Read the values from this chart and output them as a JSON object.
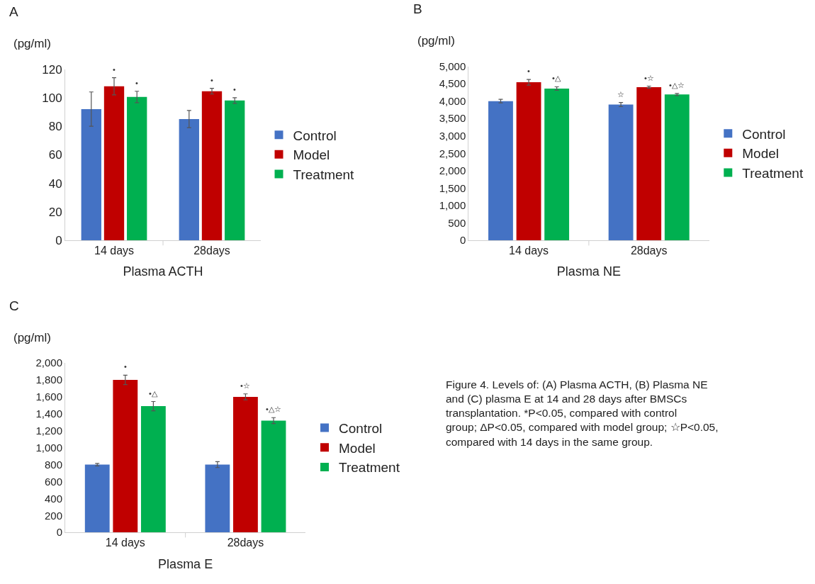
{
  "chart_data": [
    {
      "type": "bar",
      "title": "A",
      "xlabel": "Plasma ACTH",
      "ylabel": "(pg/ml)",
      "categories": [
        "14 days",
        "28days"
      ],
      "ylim": [
        0,
        120
      ],
      "yticks": [
        0,
        20,
        40,
        60,
        80,
        100,
        120
      ],
      "grid": false,
      "legend": "right",
      "series": [
        {
          "name": "Control",
          "color": "#4472c4",
          "values": [
            92,
            85
          ],
          "errors": [
            12,
            6
          ],
          "value_labels": [
            null,
            null
          ]
        },
        {
          "name": "Model",
          "color": "#c00000",
          "values": [
            108,
            104.5
          ],
          "errors": [
            6,
            2
          ],
          "value_labels": [
            "•",
            "•"
          ]
        },
        {
          "name": "Treatment",
          "color": "#00b050",
          "values": [
            100.5,
            98
          ],
          "errors": [
            4,
            2
          ],
          "value_labels": [
            "•",
            "•"
          ]
        }
      ]
    },
    {
      "type": "bar",
      "title": "B",
      "xlabel": "Plasma NE",
      "ylabel": "(pg/ml)",
      "categories": [
        "14 days",
        "28days"
      ],
      "ylim": [
        0,
        5000
      ],
      "yticks": [
        {
          "value": 0,
          "label": "0"
        },
        {
          "value": 500,
          "label": "500"
        },
        {
          "value": 1000,
          "label": "1,000"
        },
        {
          "value": 1500,
          "label": "1,500"
        },
        {
          "value": 2000,
          "label": "2,000"
        },
        {
          "value": 2500,
          "label": "2,500"
        },
        {
          "value": 3000,
          "label": "3,000"
        },
        {
          "value": 3500,
          "label": "3,500"
        },
        {
          "value": 4000,
          "label": "4,000"
        },
        {
          "value": 4500,
          "label": "4,500"
        },
        {
          "value": 5000,
          "label": "5,000"
        }
      ],
      "grid": false,
      "legend": "right",
      "series": [
        {
          "name": "Control",
          "color": "#4472c4",
          "values": [
            4000,
            3900
          ],
          "errors": [
            50,
            60
          ],
          "value_labels": [
            null,
            "☆"
          ]
        },
        {
          "name": "Model",
          "color": "#c00000",
          "values": [
            4540,
            4400
          ],
          "errors": [
            80,
            30
          ],
          "value_labels": [
            "•",
            "•☆"
          ]
        },
        {
          "name": "Treatment",
          "color": "#00b050",
          "values": [
            4360,
            4190
          ],
          "errors": [
            50,
            30
          ],
          "value_labels": [
            "•△",
            "•△☆"
          ]
        }
      ]
    },
    {
      "type": "bar",
      "title": "C",
      "xlabel": "Plasma E",
      "ylabel": "(pg/ml)",
      "categories": [
        "14 days",
        "28days"
      ],
      "ylim": [
        0,
        2000
      ],
      "yticks": [
        {
          "value": 0,
          "label": "0"
        },
        {
          "value": 200,
          "label": "200"
        },
        {
          "value": 400,
          "label": "400"
        },
        {
          "value": 600,
          "label": "600"
        },
        {
          "value": 800,
          "label": "800"
        },
        {
          "value": 1000,
          "label": "1,000"
        },
        {
          "value": 1200,
          "label": "1,200"
        },
        {
          "value": 1400,
          "label": "1,400"
        },
        {
          "value": 1600,
          "label": "1,600"
        },
        {
          "value": 1800,
          "label": "1,800"
        },
        {
          "value": 2000,
          "label": "2,000"
        }
      ],
      "grid": false,
      "legend": "right",
      "series": [
        {
          "name": "Control",
          "color": "#4472c4",
          "values": [
            800,
            800
          ],
          "errors": [
            15,
            35
          ],
          "value_labels": [
            null,
            null
          ]
        },
        {
          "name": "Model",
          "color": "#c00000",
          "values": [
            1800,
            1600
          ],
          "errors": [
            55,
            35
          ],
          "value_labels": [
            "•",
            "•☆"
          ]
        },
        {
          "name": "Treatment",
          "color": "#00b050",
          "values": [
            1490,
            1320
          ],
          "errors": [
            55,
            35
          ],
          "value_labels": [
            "•△",
            "•△☆"
          ]
        }
      ],
      "annotations": [
        "Figure 4. Levels of: (A) Plasma ACTH, (B) Plasma NE and (C) plasma E at 14 and 28 days after BMSCs transplantation. *P<0.05, compared with control group; ΔP<0.05, compared with model group; ☆P<0.05, compared with 14 days in the same group."
      ]
    }
  ]
}
